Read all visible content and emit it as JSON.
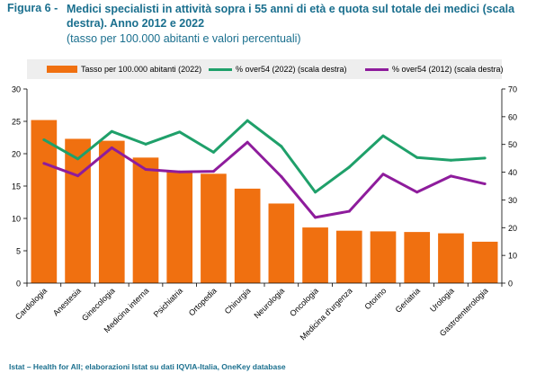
{
  "figure": {
    "number": "Figura 6 -",
    "title": "Medici specialisti in attività sopra i 55 anni di età e quota sul totale dei medici (scala destra). Anno 2012 e 2022",
    "subtitle": "(tasso per 100.000 abitanti e valori percentuali)"
  },
  "source": "Istat – Health for All; elaborazioni Istat su dati IQVIA-Italia, OneKey database",
  "colors": {
    "bar": "#f07010",
    "line2022": "#1fa06a",
    "line2012": "#8e1c9c",
    "legend_bg": "#eeeeee",
    "title": "#1a6f8e"
  },
  "chart_data": {
    "type": "bar",
    "categories": [
      "Cardiologia",
      "Anestesia",
      "Ginecologia",
      "Medicina interna",
      "Psichiatria",
      "Ortopedia",
      "Chirurgia",
      "Neurologia",
      "Oncologia",
      "Medicina d'urgenza",
      "Otorino",
      "Geriatria",
      "Urologia",
      "Gastroenterologia"
    ],
    "series": [
      {
        "name": "Tasso per 100.000 abitanti (2022)",
        "type": "bar",
        "axis": "left",
        "values": [
          25.2,
          22.3,
          22.0,
          19.4,
          17.3,
          16.9,
          14.6,
          12.3,
          8.6,
          8.1,
          8.0,
          7.9,
          7.7,
          6.4
        ]
      },
      {
        "name": "% over54 (2022) (scala destra)",
        "type": "line",
        "axis": "right",
        "values": [
          51.7,
          44.8,
          54.7,
          50.1,
          54.5,
          47.2,
          58.6,
          49.3,
          32.8,
          41.8,
          53.1,
          45.3,
          44.3,
          45.1
        ]
      },
      {
        "name": "% over54 (2012) (scala destra)",
        "type": "line",
        "axis": "right",
        "values": [
          43.2,
          38.7,
          48.8,
          41.0,
          40.1,
          40.3,
          50.8,
          38.4,
          23.7,
          25.9,
          39.3,
          32.8,
          38.6,
          35.8
        ]
      }
    ],
    "ylim_left": [
      0,
      30
    ],
    "yticks_left": [
      "0",
      "5",
      "10",
      "15",
      "20",
      "25",
      "30"
    ],
    "ylim_right": [
      0,
      70
    ],
    "yticks_right": [
      "0",
      "10",
      "20",
      "30",
      "40",
      "50",
      "60",
      "70"
    ],
    "grid": false,
    "legend_position": "top"
  }
}
